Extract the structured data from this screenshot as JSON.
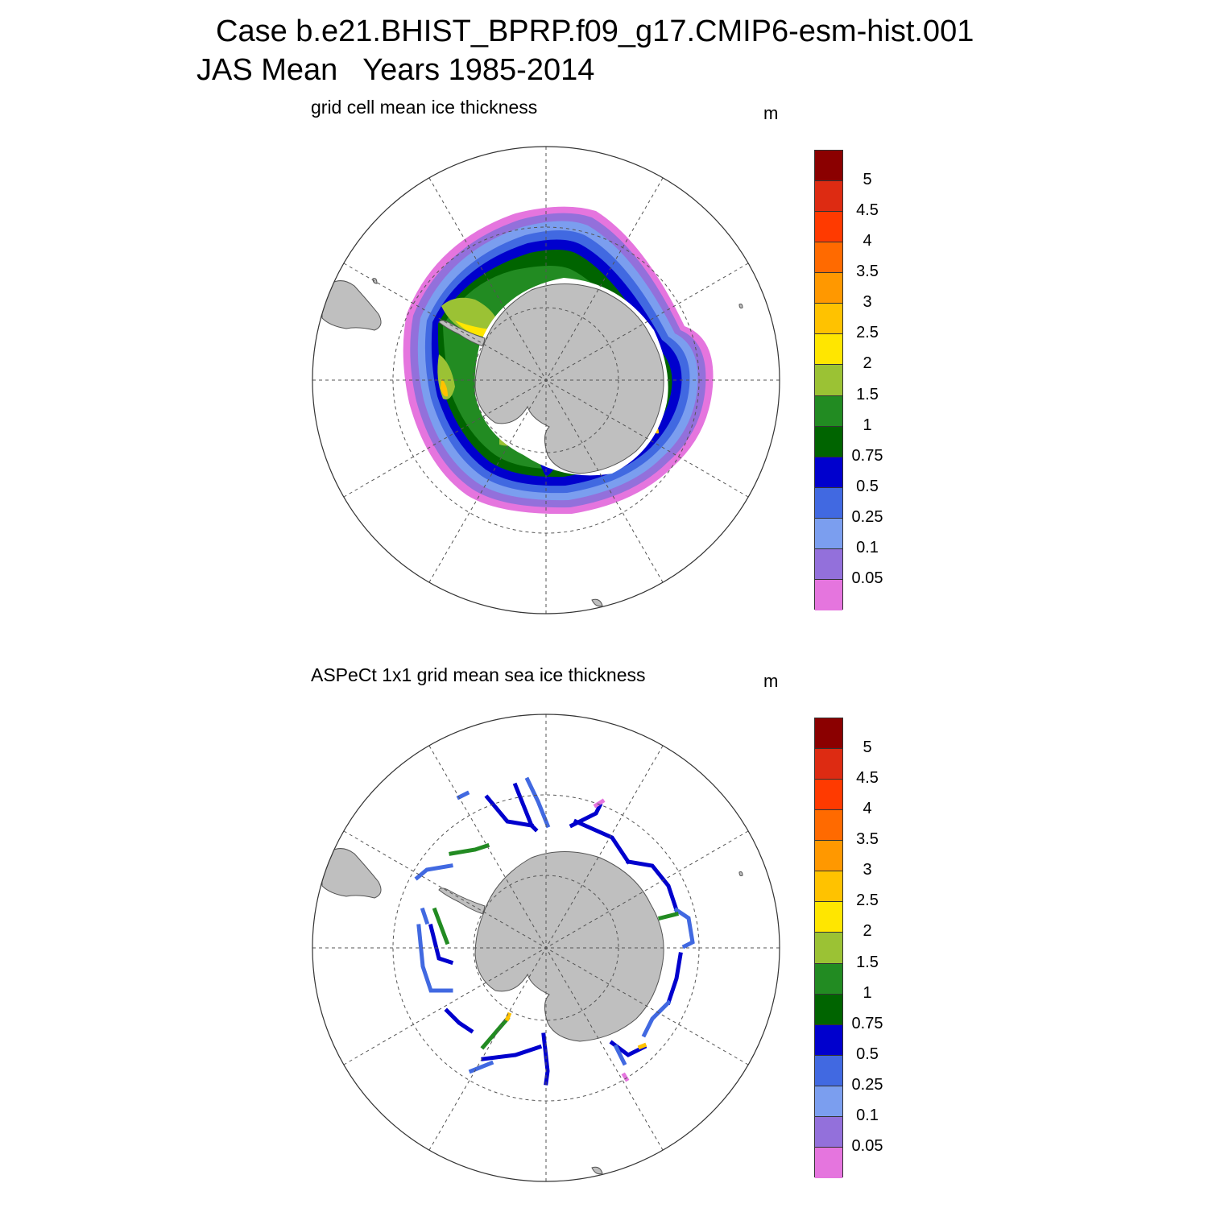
{
  "figure": {
    "title_line1": "Case b.e21.BHIST_BPRP.f09_g17.CMIP6-esm-hist.001",
    "title_line2": "JAS Mean   Years 1985-2014"
  },
  "panels": [
    {
      "title": "grid cell mean ice thickness",
      "units": "m"
    },
    {
      "title": "ASPeCt 1x1 grid mean sea ice thickness",
      "units": "m"
    }
  ],
  "colorbar": {
    "labels": [
      "5",
      "4.5",
      "4",
      "3.5",
      "3",
      "2.5",
      "2",
      "1.5",
      "1",
      "0.75",
      "0.5",
      "0.25",
      "0.1",
      "0.05"
    ],
    "colors_top_to_bottom": [
      "#8b0000",
      "#dd2b12",
      "#ff3a00",
      "#ff6a00",
      "#ff9800",
      "#ffc200",
      "#ffe600",
      "#9bc234",
      "#228b22",
      "#006400",
      "#0000cd",
      "#4169e1",
      "#7b9eef",
      "#9370db",
      "#e575de"
    ]
  },
  "colors": {
    "land": "#bfbfbf",
    "grid": "#555555"
  },
  "chart_data": {
    "type": "heatmap",
    "projection": "south-polar stereographic",
    "variable": "sea ice thickness",
    "units": "m",
    "contour_levels": [
      0.05,
      0.1,
      0.25,
      0.5,
      0.75,
      1,
      1.5,
      2,
      2.5,
      3,
      3.5,
      4,
      4.5,
      5
    ]
  }
}
